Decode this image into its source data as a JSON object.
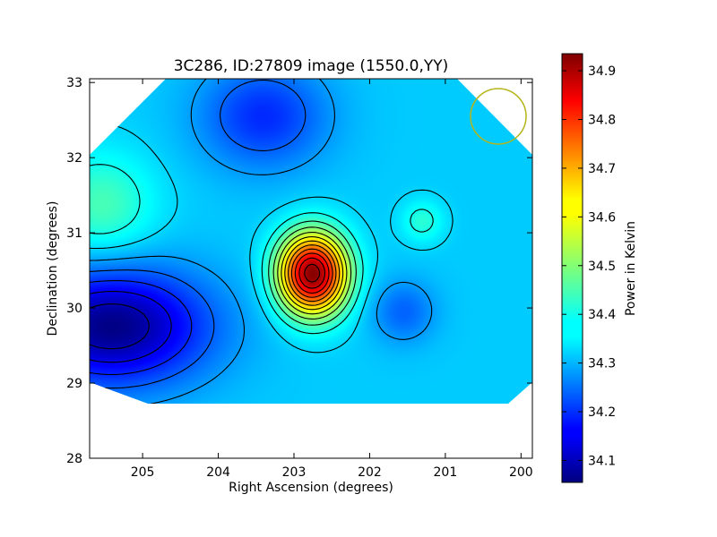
{
  "chart_data": {
    "type": "heatmap",
    "title": "3C286, ID:27809 image (1550.0,YY)",
    "xlabel": "Right Ascension (degrees)",
    "ylabel": "Declination (degrees)",
    "xlim": [
      205.7,
      199.85
    ],
    "ylim": [
      28.0,
      33.05
    ],
    "x_ticks": [
      205,
      204,
      203,
      202,
      201,
      200
    ],
    "y_ticks": [
      28,
      29,
      30,
      31,
      32,
      33
    ],
    "colorbar": {
      "label": "Power in Kelvin",
      "range": [
        34.055,
        34.935
      ],
      "ticks": [
        34.1,
        34.2,
        34.3,
        34.4,
        34.5,
        34.6,
        34.7,
        34.8,
        34.9
      ],
      "colormap": "jet"
    },
    "background_level": 34.34,
    "features": [
      {
        "kind": "peak",
        "ra": 202.75,
        "dec": 30.45,
        "value": 34.93
      },
      {
        "kind": "trough",
        "ra": 205.4,
        "dec": 29.75,
        "value": 34.06
      },
      {
        "kind": "trough",
        "ra": 203.4,
        "dec": 32.55,
        "value": 34.2
      },
      {
        "kind": "trough",
        "ra": 201.55,
        "dec": 29.95,
        "value": 34.25
      },
      {
        "kind": "bump",
        "ra": 205.55,
        "dec": 31.35,
        "value": 34.45
      },
      {
        "kind": "bump",
        "ra": 201.3,
        "dec": 31.15,
        "value": 34.42
      }
    ],
    "beam_marker": {
      "ra": 200.3,
      "dec": 32.55,
      "color": "#b5b51a"
    },
    "grid": false
  }
}
